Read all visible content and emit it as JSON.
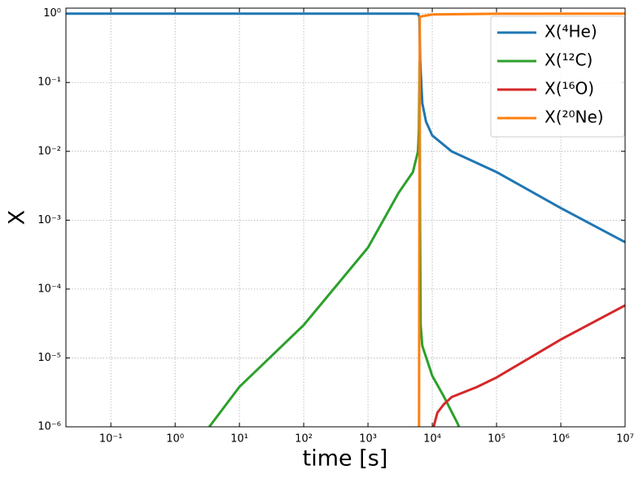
{
  "chart_data": {
    "type": "line",
    "xlabel": "time [s]",
    "ylabel": "X",
    "xscale": "log",
    "yscale": "log",
    "grid": true,
    "legend": "upper right",
    "xlim": [
      0.02,
      10000000
    ],
    "ylim": [
      1e-06,
      1.2
    ],
    "xticks": [
      {
        "value": 0.1,
        "label": "10⁻¹"
      },
      {
        "value": 1,
        "label": "10⁰"
      },
      {
        "value": 10,
        "label": "10¹"
      },
      {
        "value": 100,
        "label": "10²"
      },
      {
        "value": 1000,
        "label": "10³"
      },
      {
        "value": 10000,
        "label": "10⁴"
      },
      {
        "value": 100000,
        "label": "10⁵"
      },
      {
        "value": 1000000,
        "label": "10⁶"
      },
      {
        "value": 10000000,
        "label": "10⁷"
      }
    ],
    "yticks": [
      {
        "value": 1e-06,
        "label": "10⁻⁶"
      },
      {
        "value": 1e-05,
        "label": "10⁻⁵"
      },
      {
        "value": 0.0001,
        "label": "10⁻⁴"
      },
      {
        "value": 0.001,
        "label": "10⁻³"
      },
      {
        "value": 0.01,
        "label": "10⁻²"
      },
      {
        "value": 0.1,
        "label": "10⁻¹"
      },
      {
        "value": 1,
        "label": "10⁰"
      }
    ],
    "series": [
      {
        "name": "X(⁴He)",
        "color": "#1f77b4",
        "x": [
          0.02,
          1000,
          5000,
          6000,
          6300,
          6400,
          6500,
          7000,
          8000,
          10000,
          20000,
          100000,
          1000000,
          10000000
        ],
        "values": [
          1,
          1,
          1,
          0.99,
          0.9,
          0.4,
          0.2,
          0.05,
          0.027,
          0.017,
          0.01,
          0.005,
          0.0015,
          0.00048
        ]
      },
      {
        "name": "X(¹²C)",
        "color": "#2ca02c",
        "x": [
          3.4,
          10,
          100,
          1000,
          3000,
          5000,
          6000,
          6200,
          6350,
          6450,
          6600,
          7000,
          10000,
          15000,
          25000,
          30000
        ],
        "values": [
          1e-06,
          3.8e-06,
          3e-05,
          0.0004,
          0.0025,
          0.005,
          0.01,
          0.02,
          0.2,
          0.001,
          3e-05,
          1.5e-05,
          5.5e-06,
          2.8e-06,
          1.1e-06,
          7e-07
        ]
      },
      {
        "name": "X(¹⁶O)",
        "color": "#d62728",
        "x": [
          10500,
          12000,
          15000,
          20000,
          50000,
          100000,
          1000000,
          10000000
        ],
        "values": [
          1e-06,
          1.6e-06,
          2.1e-06,
          2.7e-06,
          3.8e-06,
          5.2e-06,
          1.85e-05,
          5.8e-05
        ]
      },
      {
        "name": "X(²⁰Ne)",
        "color": "#ff7f0e",
        "x": [
          6200,
          6300,
          6400,
          10000,
          100000,
          10000000
        ],
        "values": [
          1e-07,
          0.001,
          0.9,
          0.97,
          0.995,
          1
        ]
      }
    ]
  }
}
